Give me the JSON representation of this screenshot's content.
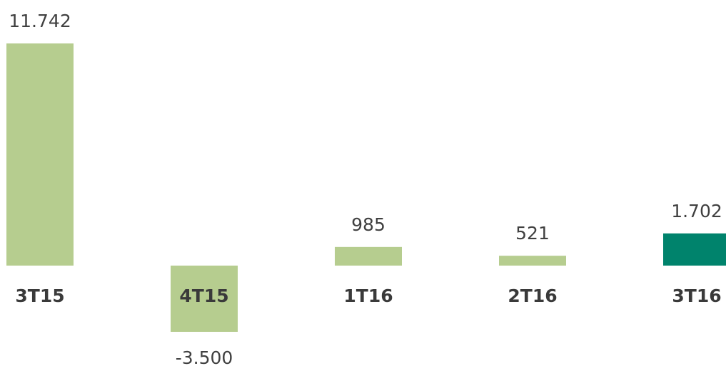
{
  "chart_data": {
    "type": "bar",
    "categories": [
      "3T15",
      "4T15",
      "1T16",
      "2T16",
      "3T16"
    ],
    "values": [
      11742,
      -3500,
      985,
      521,
      1702
    ],
    "value_labels": [
      "11.742",
      "-3.500",
      "985",
      "521",
      "1.702"
    ],
    "colors": [
      "#b6cd8f",
      "#b6cd8f",
      "#b6cd8f",
      "#b6cd8f",
      "#00836c"
    ]
  }
}
